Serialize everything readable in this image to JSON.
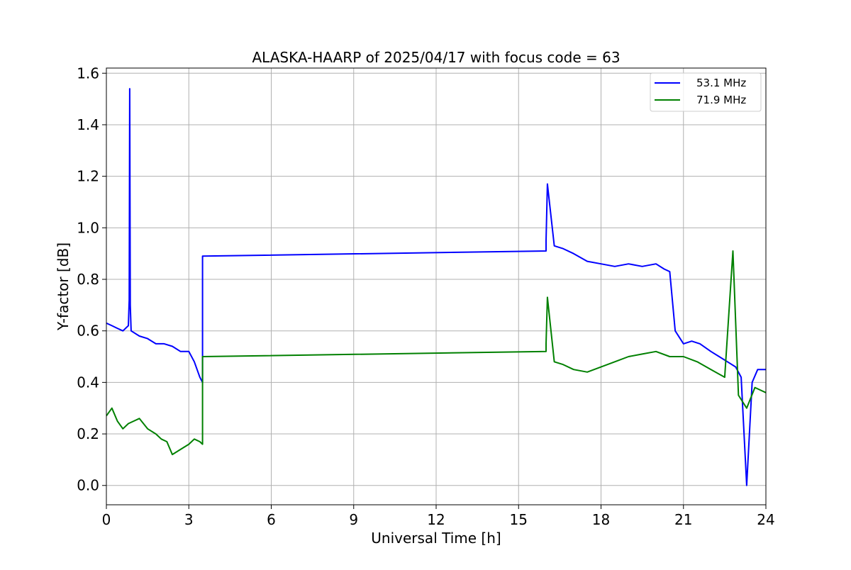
{
  "chart_data": {
    "type": "line",
    "title": "ALASKA-HAARP of 2025/04/17 with focus code = 63",
    "xlabel": "Universal Time [h]",
    "ylabel": "Y-factor [dB]",
    "xlim": [
      0,
      24
    ],
    "ylim": [
      -0.075,
      1.62
    ],
    "xticks": [
      0,
      3,
      6,
      9,
      12,
      15,
      18,
      21,
      24
    ],
    "yticks": [
      0.0,
      0.2,
      0.4,
      0.6,
      0.8,
      1.0,
      1.2,
      1.4,
      1.6
    ],
    "xtick_labels": [
      "0",
      "3",
      "6",
      "9",
      "12",
      "15",
      "18",
      "21",
      "24"
    ],
    "ytick_labels": [
      "0.0",
      "0.2",
      "0.4",
      "0.6",
      "0.8",
      "1.0",
      "1.2",
      "1.4",
      "1.6"
    ],
    "grid": true,
    "legend_position": "top-right",
    "series": [
      {
        "name": "53.1 MHz",
        "color": "#0000ff",
        "x": [
          0.0,
          0.2,
          0.4,
          0.6,
          0.8,
          0.83,
          0.85,
          0.87,
          0.9,
          1.2,
          1.5,
          1.8,
          2.1,
          2.4,
          2.7,
          3.0,
          3.2,
          3.4,
          3.5,
          3.5,
          16.0,
          16.0,
          16.05,
          16.3,
          16.6,
          17.0,
          17.5,
          18.0,
          18.5,
          19.0,
          19.5,
          20.0,
          20.3,
          20.5,
          20.7,
          21.0,
          21.3,
          21.6,
          22.0,
          22.3,
          22.6,
          22.9,
          23.1,
          23.3,
          23.5,
          23.7,
          24.0
        ],
        "y": [
          0.63,
          0.62,
          0.61,
          0.6,
          0.62,
          0.72,
          1.54,
          0.7,
          0.6,
          0.58,
          0.57,
          0.55,
          0.55,
          0.54,
          0.52,
          0.52,
          0.48,
          0.42,
          0.4,
          0.89,
          0.91,
          0.95,
          1.17,
          0.93,
          0.92,
          0.9,
          0.87,
          0.86,
          0.85,
          0.86,
          0.85,
          0.86,
          0.84,
          0.83,
          0.6,
          0.55,
          0.56,
          0.55,
          0.52,
          0.5,
          0.48,
          0.46,
          0.42,
          0.0,
          0.4,
          0.45,
          0.45
        ]
      },
      {
        "name": "71.9 MHz",
        "color": "#008000",
        "x": [
          0.0,
          0.2,
          0.4,
          0.6,
          0.8,
          1.0,
          1.2,
          1.5,
          1.8,
          2.0,
          2.2,
          2.4,
          2.7,
          3.0,
          3.2,
          3.4,
          3.5,
          3.5,
          16.0,
          16.0,
          16.05,
          16.3,
          16.6,
          17.0,
          17.5,
          18.0,
          18.5,
          19.0,
          19.5,
          20.0,
          20.5,
          21.0,
          21.5,
          22.0,
          22.5,
          22.8,
          23.0,
          23.3,
          23.6,
          24.0
        ],
        "y": [
          0.27,
          0.3,
          0.25,
          0.22,
          0.24,
          0.25,
          0.26,
          0.22,
          0.2,
          0.18,
          0.17,
          0.12,
          0.14,
          0.16,
          0.18,
          0.17,
          0.16,
          0.5,
          0.52,
          0.55,
          0.73,
          0.48,
          0.47,
          0.45,
          0.44,
          0.46,
          0.48,
          0.5,
          0.51,
          0.52,
          0.5,
          0.5,
          0.48,
          0.45,
          0.42,
          0.91,
          0.35,
          0.3,
          0.38,
          0.36
        ]
      }
    ]
  }
}
